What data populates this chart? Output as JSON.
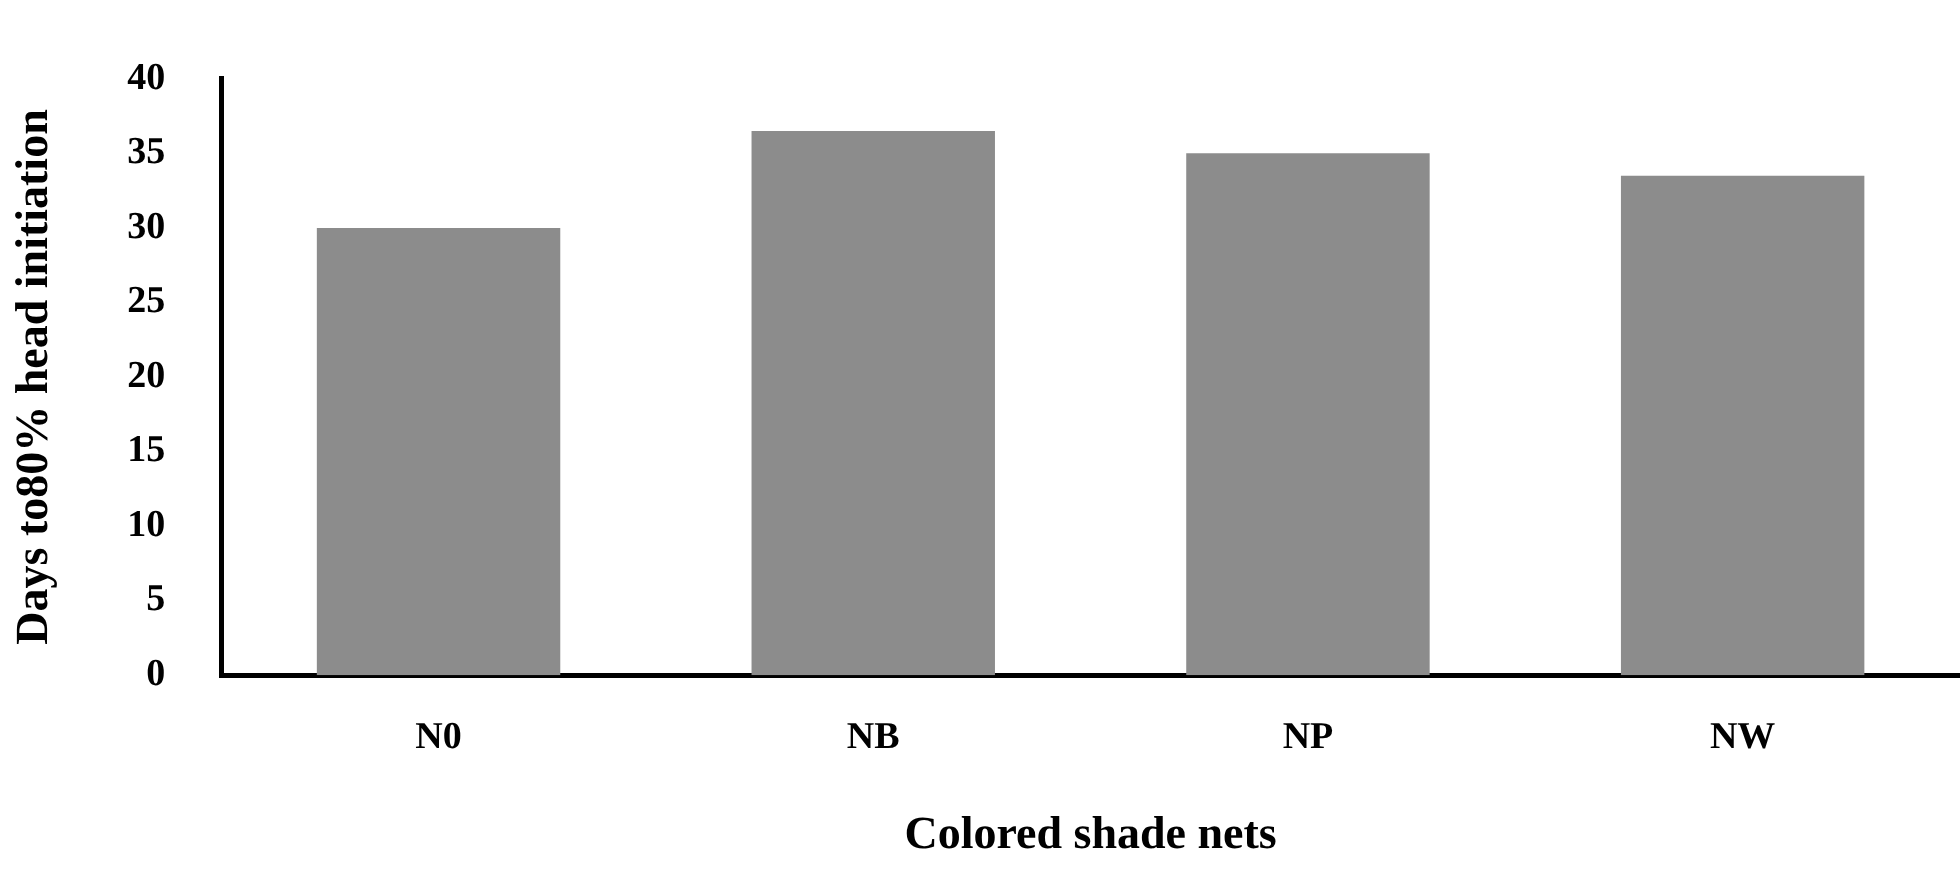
{
  "chart_data": {
    "type": "bar",
    "xlabel": "Colored shade nets",
    "ylabel": "Days to80% head initiation",
    "categories": [
      "N0",
      "NB",
      "NP",
      "NW"
    ],
    "values": [
      30,
      36.5,
      35,
      33.5
    ],
    "color": "#8c8c8c",
    "ylim": [
      0,
      40
    ],
    "yticks": [
      0,
      5,
      10,
      15,
      20,
      25,
      30,
      35,
      40
    ],
    "grid": false
  }
}
